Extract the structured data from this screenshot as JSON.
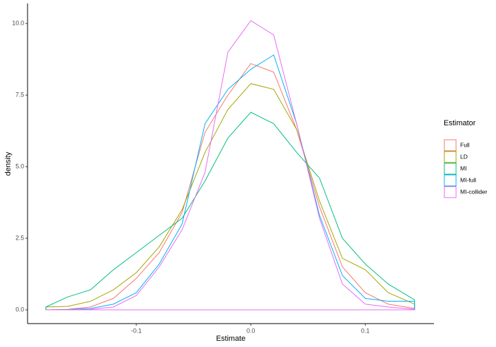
{
  "chart_data": {
    "type": "density",
    "x_label": "Estimate",
    "y_label": "density",
    "legend_title": "Estimator",
    "x": [
      -0.179,
      -0.16,
      -0.14,
      -0.12,
      -0.1,
      -0.08,
      -0.06,
      -0.04,
      -0.02,
      0,
      0.02,
      0.04,
      0.06,
      0.08,
      0.1,
      0.12,
      0.143
    ],
    "series": [
      {
        "name": "Full",
        "color": "#f8766d",
        "values": [
          0.0,
          0.02,
          0.1,
          0.4,
          1.1,
          2.0,
          3.4,
          6.2,
          7.5,
          8.6,
          8.3,
          6.3,
          3.6,
          1.5,
          0.6,
          0.2,
          0.05
        ]
      },
      {
        "name": "LD",
        "color": "#a3a500",
        "values": [
          0.1,
          0.12,
          0.3,
          0.7,
          1.3,
          2.2,
          3.5,
          5.5,
          7.0,
          7.9,
          7.7,
          6.3,
          3.8,
          1.8,
          1.4,
          0.6,
          0.2
        ]
      },
      {
        "name": "MI",
        "color": "#00bf7d",
        "values": [
          0.1,
          0.45,
          0.7,
          1.4,
          2.0,
          2.6,
          3.2,
          4.5,
          6.0,
          6.9,
          6.5,
          5.5,
          4.6,
          2.5,
          1.6,
          0.9,
          0.35
        ]
      },
      {
        "name": "MI-full",
        "color": "#00b0f6",
        "values": [
          0.0,
          0.01,
          0.05,
          0.2,
          0.6,
          1.6,
          3.0,
          6.5,
          7.7,
          8.4,
          8.9,
          6.5,
          3.3,
          1.2,
          0.4,
          0.3,
          0.3
        ]
      },
      {
        "name": "MI-collider",
        "color": "#e76bf3",
        "values": [
          0.0,
          0.0,
          0.02,
          0.1,
          0.5,
          1.5,
          2.8,
          4.8,
          9.0,
          10.1,
          9.6,
          6.5,
          3.2,
          0.9,
          0.2,
          0.1,
          0.02
        ]
      }
    ],
    "xlim": [
      -0.195,
      0.16
    ],
    "ylim": [
      -0.48,
      10.7
    ],
    "xticks": [
      -0.1,
      {
        "value": 0,
        "label": "0.0"
      },
      0.1
    ],
    "yticks": [
      {
        "value": 0,
        "label": "0.0"
      },
      2.5,
      {
        "value": 5,
        "label": "5.0"
      },
      7.5,
      {
        "value": 10,
        "label": "10.0"
      }
    ],
    "grid": false,
    "legend_position": "right"
  }
}
